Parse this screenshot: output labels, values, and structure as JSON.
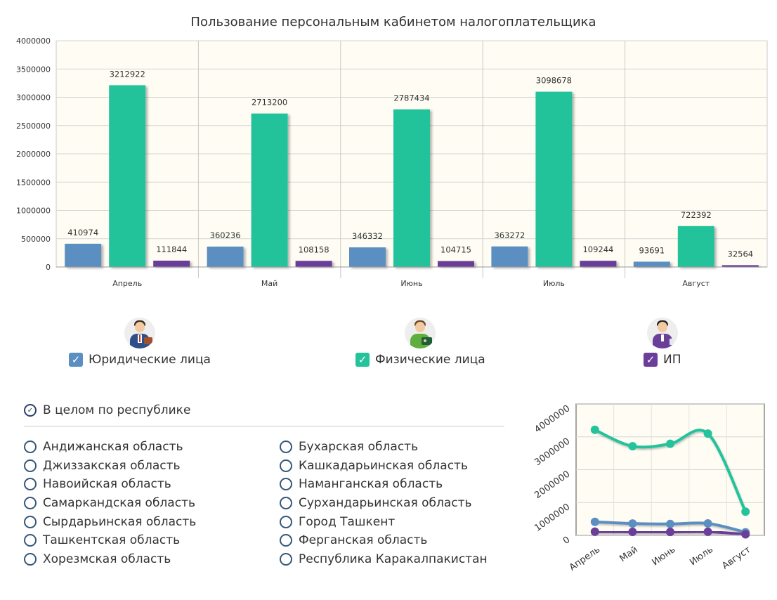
{
  "chart_data": [
    {
      "type": "bar",
      "title": "Пользование персональным кабинетом налогоплательщика",
      "categories": [
        "Апрель",
        "Май",
        "Июнь",
        "Июль",
        "Август"
      ],
      "ylim": [
        0,
        4000000
      ],
      "yticks": [
        0,
        500000,
        1000000,
        1500000,
        2000000,
        2500000,
        3000000,
        3500000,
        4000000
      ],
      "series": [
        {
          "values": [
            410974,
            360236,
            346332,
            363272,
            93691
          ],
          "color": "#5b8fc1"
        },
        {
          "values": [
            3212922,
            2713200,
            2787434,
            3098678,
            722392
          ],
          "color": "#24c39b"
        },
        {
          "values": [
            111844,
            108158,
            104715,
            109244,
            32564
          ],
          "color": "#6a3e99"
        }
      ],
      "grid": true,
      "data_labels": true
    },
    {
      "type": "line",
      "categories": [
        "Апрель",
        "Май",
        "Июнь",
        "Июль",
        "Август"
      ],
      "ylim": [
        0,
        4000000
      ],
      "yticks": [
        0,
        1000000,
        2000000,
        3000000,
        4000000
      ],
      "series": [
        {
          "values": [
            410974,
            360236,
            346332,
            363272,
            93691
          ],
          "color": "#5b8fc1"
        },
        {
          "values": [
            3212922,
            2713200,
            2787434,
            3098678,
            722392
          ],
          "color": "#24c39b"
        },
        {
          "values": [
            111844,
            108158,
            104715,
            109244,
            32564
          ],
          "color": "#6a3e99"
        }
      ],
      "grid": true
    }
  ],
  "legend": [
    {
      "label": "Юридические лица",
      "checked": true,
      "color": "#5b8fc1",
      "icon": "businessman-briefcase-icon",
      "check": "✓"
    },
    {
      "label": "Физические лица",
      "checked": true,
      "color": "#24c39b",
      "icon": "person-id-card-icon",
      "check": "✓"
    },
    {
      "label": "ИП",
      "checked": true,
      "color": "#6a3e99",
      "icon": "entrepreneur-icon",
      "check": "✓"
    }
  ],
  "regions": {
    "all_label": "В целом по республике",
    "all_mark": "✓",
    "left": [
      "Андижанская область",
      "Джиззакская область",
      "Навоийская область",
      "Самаркандская область",
      "Сырдарьинская область",
      "Ташкентская область",
      "Хорезмская область"
    ],
    "right": [
      "Бухарская область",
      "Кашкадарьинская область",
      "Наманганская область",
      "Сурхандарьинская область",
      "Город Ташкент",
      "Ферганская область",
      "Республика Каракалпакистан"
    ]
  }
}
